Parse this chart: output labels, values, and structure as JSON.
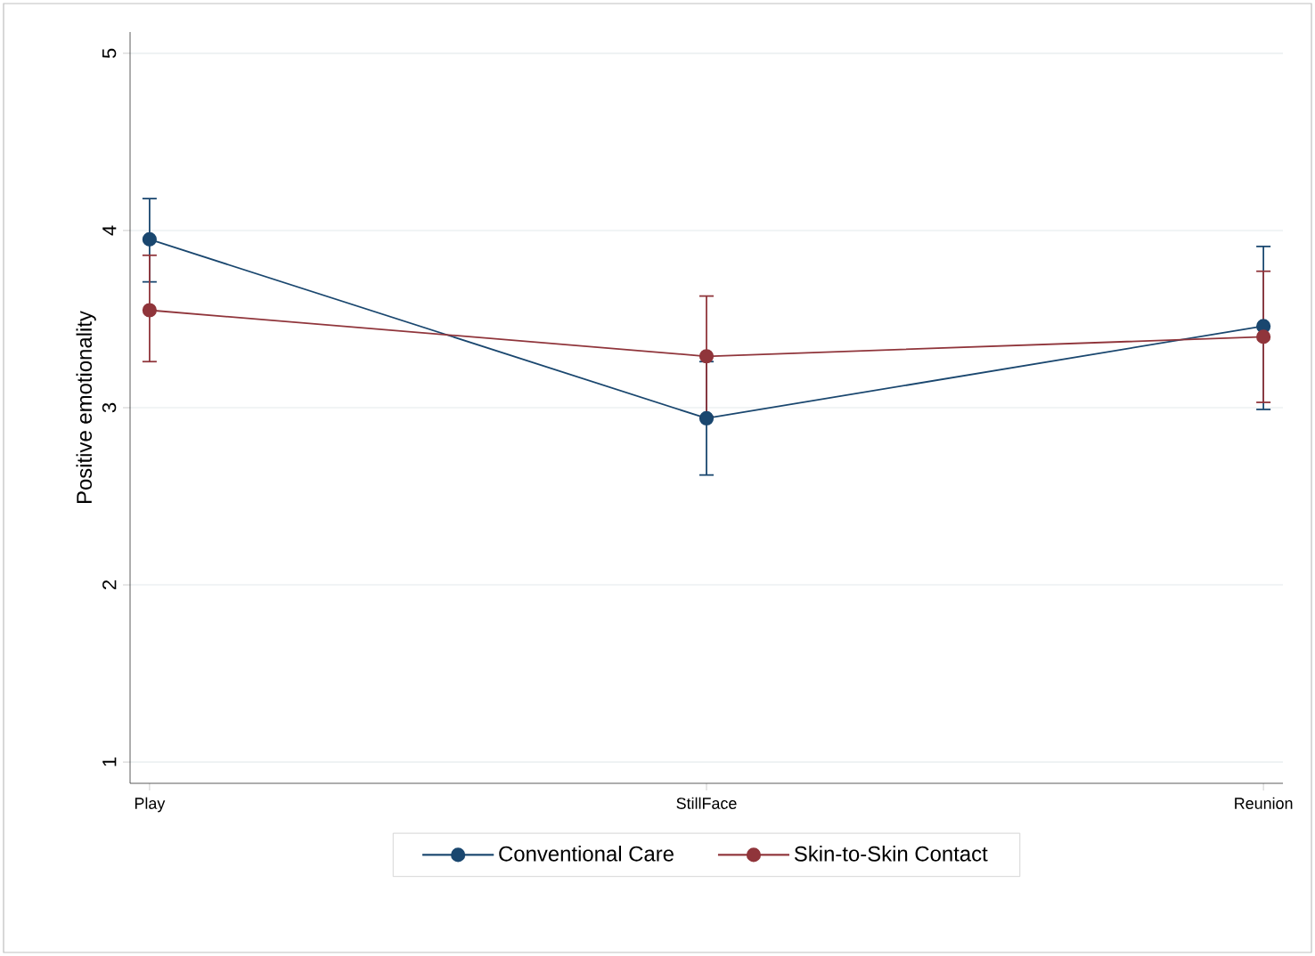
{
  "chart_data": {
    "type": "line",
    "ylabel": "Positive emotionality",
    "categories": [
      "Play",
      "StillFace",
      "Reunion"
    ],
    "series": [
      {
        "name": "Conventional Care",
        "color": "#1a476f",
        "values": [
          3.95,
          2.94,
          3.46
        ],
        "errors": [
          [
            3.71,
            4.18
          ],
          [
            2.62,
            3.26
          ],
          [
            2.99,
            3.91
          ]
        ]
      },
      {
        "name": "Skin-to-Skin Contact",
        "color": "#90353b",
        "values": [
          3.55,
          3.29,
          3.4
        ],
        "errors": [
          [
            3.26,
            3.86
          ],
          [
            2.95,
            3.63
          ],
          [
            3.03,
            3.77
          ]
        ]
      }
    ],
    "ylim": [
      1,
      5
    ],
    "yticks": [
      1,
      2,
      3,
      4,
      5
    ],
    "grid": "y",
    "legend": "bottom",
    "marker": "circle",
    "line_style": "solid"
  }
}
